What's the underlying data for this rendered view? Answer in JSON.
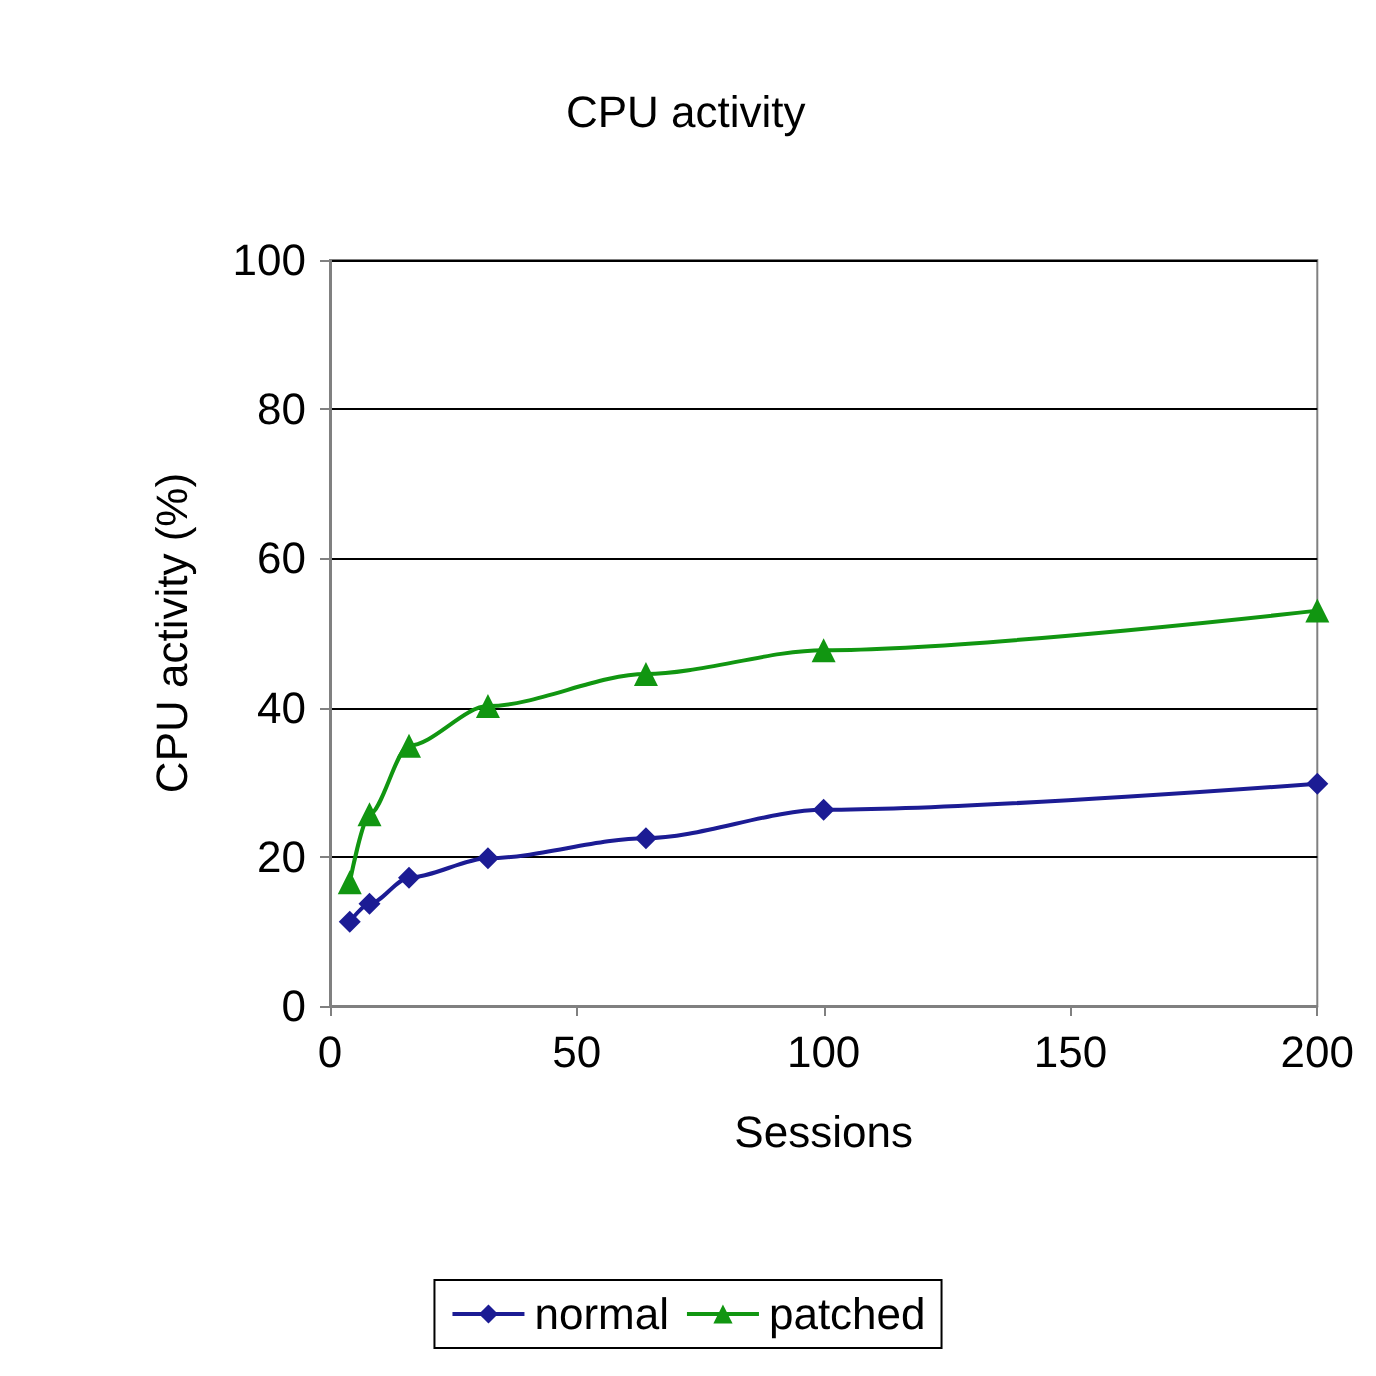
{
  "chart_data": {
    "type": "line",
    "title": "CPU activity",
    "xlabel": "Sessions",
    "ylabel": "CPU activity (%)",
    "x": [
      4,
      8,
      16,
      32,
      64,
      100,
      200
    ],
    "series": [
      {
        "name": "normal",
        "color": "#1c1c94",
        "marker": "diamond",
        "values": [
          11.3,
          13.7,
          17.2,
          19.8,
          22.5,
          26.3,
          29.8
        ]
      },
      {
        "name": "patched",
        "color": "#119611",
        "marker": "triangle",
        "values": [
          16.6,
          25.7,
          34.9,
          40.2,
          44.5,
          47.7,
          53
        ]
      }
    ],
    "xlim": [
      0,
      200
    ],
    "xticks": [
      0,
      50,
      100,
      150,
      200
    ],
    "ylim": [
      0,
      100
    ],
    "yticks": [
      0,
      20,
      40,
      60,
      80,
      100
    ],
    "grid": "y",
    "legend": "bottom",
    "line_style": "solid"
  }
}
